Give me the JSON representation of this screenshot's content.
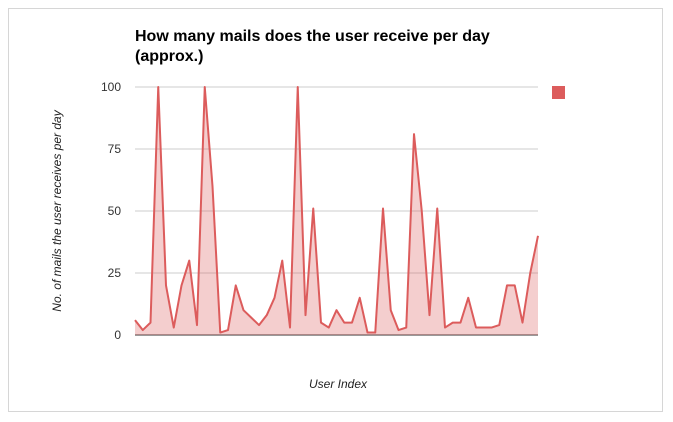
{
  "chart_data": {
    "type": "area",
    "title": "How many mails does the user receive per day (approx.)",
    "xlabel": "User Index",
    "ylabel": "No. of mails the user receives per day",
    "ylim": [
      0,
      100
    ],
    "yticks": [
      0,
      25,
      50,
      75,
      100
    ],
    "grid": true,
    "legend": "right",
    "series": [
      {
        "color": "#dc5c5c",
        "values": [
          6,
          2,
          5,
          100,
          20,
          3,
          20,
          30,
          4,
          100,
          60,
          1,
          2,
          20,
          10,
          7,
          4,
          8,
          15,
          30,
          3,
          100,
          8,
          51,
          5,
          3,
          10,
          5,
          5,
          15,
          1,
          1,
          51,
          10,
          2,
          3,
          81,
          50,
          8,
          51,
          3,
          5,
          5,
          15,
          3,
          3,
          3,
          4,
          20,
          20,
          5,
          25,
          40
        ]
      }
    ]
  }
}
